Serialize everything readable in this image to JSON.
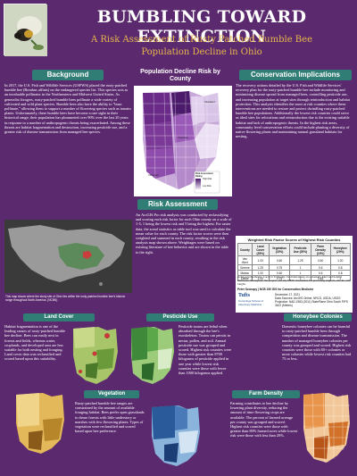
{
  "header": {
    "title": "BUMBLING TOWARD EXTINCTION",
    "subtitle_line1": "A Risk Assessment of Rusty Patched Bumble Bee",
    "subtitle_line2": "Population Decline in Ohio"
  },
  "background": {
    "heading": "Background",
    "text": "In 2017, the U.S. Fish and Wildlife Services (USFWS) placed the rusty-patched bumble bee (Bombus affinis) on the endangered species list. This species acts as an invaluable pollinator in the Northeastern and Midwest United States. As generalist foragers, rusty-patched bumble bees pollinate a wide variety of cultivated and wild plant species. Bumble bees also have the ability to \"buzz pollinate,\" allowing them to support a number of flowering species such as tomato plants. Unfortunately, these bumble bees have become a rare sight in their historical range; their population has plummeted over 90% over the last 20 years in response to a number of anthropogenic threats being exacerbated. Among these threats are habitat fragmentation and destruction, increasing pesticide use, and a greater risk of disease transmission from managed bee species.",
    "map_caption": "This map shows where the study site of Ohio lies within the rusty patched bumble bee's historic range throughout North America. (NCBN)"
  },
  "center_map": {
    "title_line1": "Population Decline Risk by",
    "title_line2": "County",
    "legend_title": "Risk Assessment Rating",
    "legend_low": "Low Risk",
    "legend_high": "High Risk",
    "city_labels": [
      "Cleveland",
      "Columbus",
      "Cincinnati"
    ]
  },
  "risk_assessment": {
    "heading": "Risk Assessment",
    "text": "An ArcGIS Pro risk analysis was conducted by reclassifying and scoring each risk factor for each Ohio county on a scale of 1-5, 1 being the lowest risk and 5 being the highest. For raster data, the zonal statistics as table tool was used to calculate the mean value for each county. The risk factor scores were then weighted and summed in each county, resulting in the risk analysis map shown above. Weightages were based on existing literature of bee behavior and are shown in the table to the right."
  },
  "conservation": {
    "heading": "Conservation Implications",
    "text": "The recovery actions detailed by the U.S. Fish and Wildlife Services' recovery plan for the rusty-patched bumble bee include monitoring and minimizing disease spread from managed bees, controlling pesticide use, and increasing population at target sites through reintroduction and habitat protection. This analysis identifies the most at risk counties where these interventions are needed to restore and protect dwindling rusty-patched bumble bee populations. Additionally the lowest risk counties could serve as ideal sites for relocations and reintroduction due to the existing suitable habitat and lack of anthropogenic threats. In the highest risk areas, community level conservation efforts could include planting a diversity of native flowering plants and maintaining natural grassland habitats for nesting."
  },
  "risk_table": {
    "title": "Weighted Risk Factor Scores of Highest Risk Counties",
    "columns": [
      "County",
      "Land Cover (25%)",
      "Vegetation (15%)",
      "Pesticide Use (25%)",
      "Farm Density (15%)",
      "Honeybee (20%)"
    ],
    "rows": [
      [
        "Van Wert",
        "1.00",
        "0.60",
        "1.25",
        "0.60",
        "1.00"
      ],
      [
        "Greene",
        "1.25",
        "0.75",
        "1",
        "0.6",
        "0.8"
      ],
      [
        "Marion",
        "1.00",
        "0.60",
        "1",
        "0.6",
        "0.8"
      ],
      [
        "Darke",
        "1.00",
        "0.75",
        "1",
        "0.45",
        "1"
      ]
    ]
  },
  "acknowledgements": {
    "text": "Acknowledgements: Carolyn Talmadge for maintaining an extremely kind and helpful demeanor throughout the project and my NEW classmates for providing support, snacks, and laughs."
  },
  "credits": {
    "author": "Peter Szonopy | NCB 190 GIS for Conservation Medicine",
    "institution": "Tufts",
    "institution_sub": "Cummings School of Veterinary Medicine",
    "date": "December 17, 2021",
    "source": "Data Sources: ArcGIS Online, NRCS, USDA, USGS",
    "projection": "Projection: NAD 1983 (2011) StatePlane Ohio South FIPS 3402 (Meters)"
  },
  "land_cover": {
    "heading": "Land Cover",
    "text": "Habitat fragmentation is one of the leading causes of rusty-patched bumble bee decline. Bees can easily nest in forests and fields, whereas water, croplands, and developed area are less suitable for both nesting and foraging. Land cover data was reclassified and scored based upon this suitability."
  },
  "pesticide": {
    "heading": "Pesticide Use",
    "text": "Pesticide toxins are lethal when absorbed through the bee's exoskeleton. Toxins can persist in nectar, pollen, and soil. Annual pesticide use was grouped and scored. Highest risk counties were those with greater than 8700 kilograms of pesticide applied in one year while lowest risk counties were those with fewer than 1000 kilograms applied."
  },
  "honeybee": {
    "heading": "Honeybee Colonies",
    "text": "Domestic honeybee colonies can be harmful to rusty-patched bumble bees through competition and disease transmission. The number of managed honeybee colonies per county was grouped and scored. Highest risk counties were those with 80+ colonies or more colonies while lowest risk counties had 75 or less."
  },
  "vegetation": {
    "heading": "Vegetation",
    "text": "Rusty-patched bumble bee ranges are constrained by the amount of available foraging habitat. Bees prefer open grasslands to dense forests with little understory or marshes with few flowering plants. Types of vegetation were reclassified and scored based upon bee preference."
  },
  "farm_density": {
    "heading": "Farm Density",
    "text": "Farming contributes to bee decline by lowering plant diversity, reducing the amount of time flowering crops are available. The percent of farmed acreage per county was grouped and scored. Highest risk counties were those with greater than 80% farmed acres while lowest risk were those with less than 20%."
  },
  "colors": {
    "background": "#5b2a6e",
    "panel_head": "#2f7d74",
    "title": "#ffffff",
    "subtitle": "#e8b74b"
  }
}
